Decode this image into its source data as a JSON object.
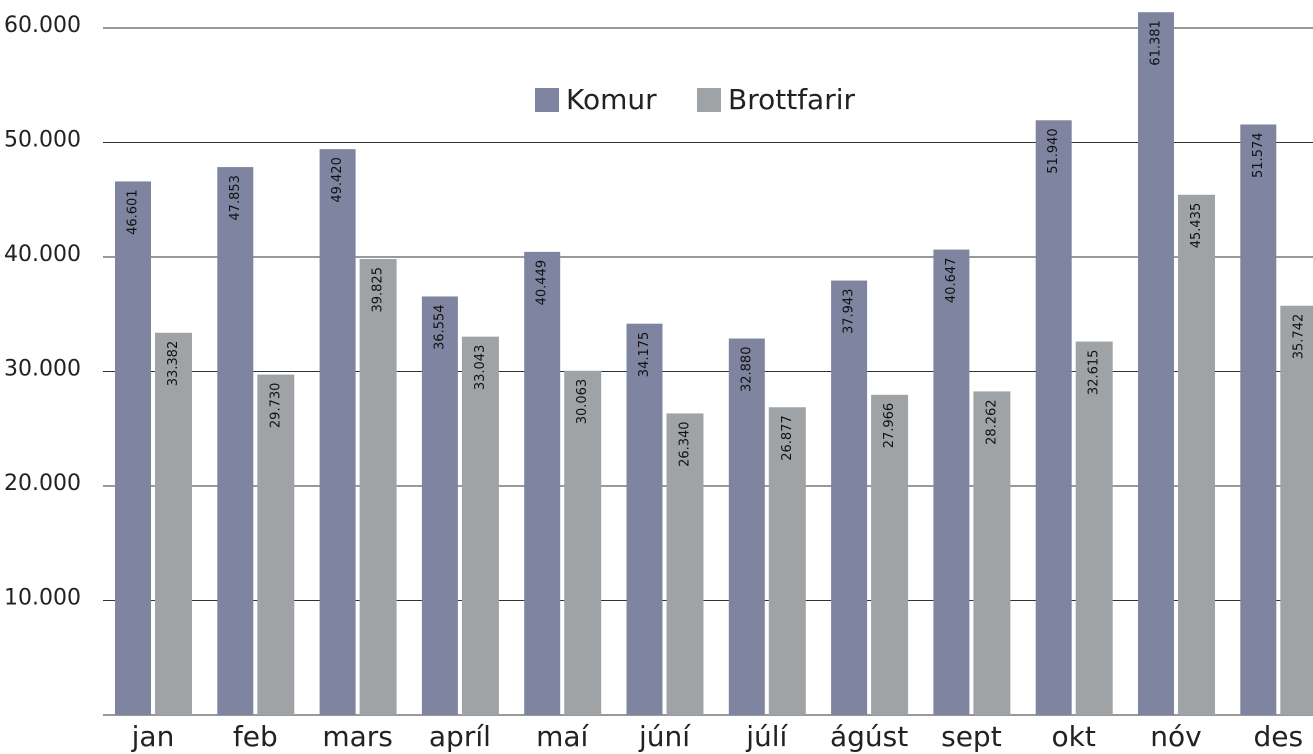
{
  "chart_data": {
    "type": "bar",
    "categories": [
      "jan",
      "feb",
      "mars",
      "apríl",
      "maí",
      "júní",
      "júlí",
      "ágúst",
      "sept",
      "okt",
      "nóv",
      "des"
    ],
    "series": [
      {
        "name": "Komur",
        "color": "#7f84a0",
        "values": [
          46601,
          47853,
          49420,
          36554,
          40449,
          34175,
          32880,
          37943,
          40647,
          51940,
          61381,
          51574
        ],
        "value_labels": [
          "46.601",
          "47.853",
          "49.420",
          "36.554",
          "40.449",
          "34.175",
          "32.880",
          "37.943",
          "40.647",
          "51.940",
          "61.381",
          "51.574"
        ]
      },
      {
        "name": "Brottfarir",
        "color": "#a0a3a6",
        "values": [
          33382,
          29730,
          39825,
          33043,
          30063,
          26340,
          26877,
          27966,
          28262,
          32615,
          45435,
          35742
        ],
        "value_labels": [
          "33.382",
          "29.730",
          "39.825",
          "33.043",
          "30.063",
          "26.340",
          "26.877",
          "27.966",
          "28.262",
          "32.615",
          "45.435",
          "35.742"
        ]
      }
    ],
    "ylim": [
      0,
      62000
    ],
    "yticks": [
      {
        "value": 10000,
        "label": "10.000"
      },
      {
        "value": 20000,
        "label": "20.000"
      },
      {
        "value": 30000,
        "label": "30.000"
      },
      {
        "value": 40000,
        "label": "40.000"
      },
      {
        "value": 50000,
        "label": "50.000"
      },
      {
        "value": 60000,
        "label": "60.000"
      }
    ],
    "grid": true,
    "legend": "top"
  }
}
